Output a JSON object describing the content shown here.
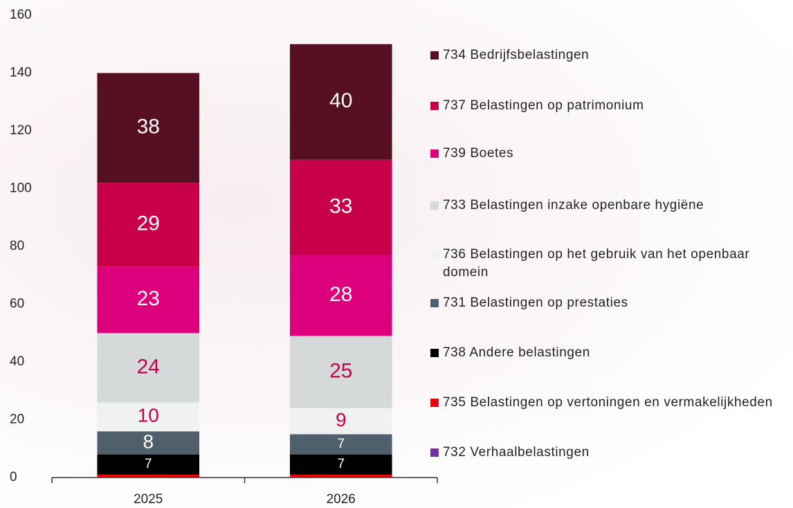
{
  "chart_data": {
    "type": "stacked_bar",
    "categories": [
      "2025",
      "2026"
    ],
    "ylim": [
      0,
      160
    ],
    "yticks": [
      0,
      20,
      40,
      60,
      80,
      100,
      120,
      140,
      160
    ],
    "grid": false,
    "legend": "right",
    "series": [
      {
        "name": "732 Verhaalbelastingen",
        "color": "#7030a0",
        "label_color": "#ffffff",
        "values": [
          0,
          0
        ]
      },
      {
        "name": "735 Belastingen op vertoningen en vermakelijkheden",
        "color": "#e8000e",
        "label_color": "#ffffff",
        "values": [
          1,
          1
        ]
      },
      {
        "name": "738 Andere belastingen",
        "color": "#000000",
        "label_color": "#ffffff",
        "values": [
          7,
          7
        ]
      },
      {
        "name": "731 Belastingen op prestaties",
        "color": "#4f5f6c",
        "label_color": "#ffffff",
        "values": [
          8,
          7
        ]
      },
      {
        "name": "736 Belastingen op het gebruik van het openbaar domein",
        "color": "#f0f1f1",
        "label_color": "#c8004a",
        "values": [
          10,
          9
        ]
      },
      {
        "name": "733 Belastingen inzake openbare hygiëne",
        "color": "#d6d9da",
        "label_color": "#c8004a",
        "values": [
          24,
          25
        ]
      },
      {
        "name": "739 Boetes",
        "color": "#dc007d",
        "label_color": "#ffffff",
        "values": [
          23,
          28
        ]
      },
      {
        "name": "737 Belastingen op patrimonium",
        "color": "#c8004a",
        "label_color": "#ffffff",
        "values": [
          29,
          33
        ]
      },
      {
        "name": "734 Bedrijfsbelastingen",
        "color": "#560f23",
        "label_color": "#ffffff",
        "values": [
          38,
          40
        ]
      }
    ]
  }
}
